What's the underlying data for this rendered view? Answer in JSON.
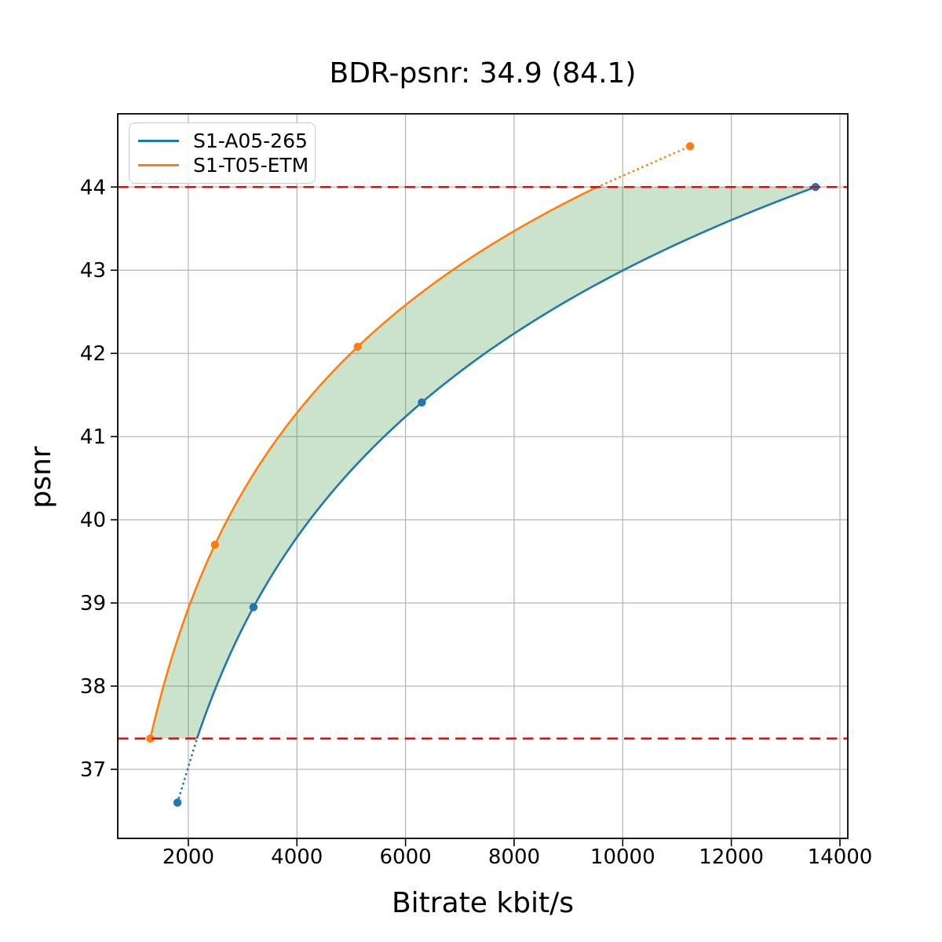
{
  "chart_data": {
    "type": "line",
    "title": "BDR-psnr: 34.9 (84.1)",
    "xlabel": "Bitrate kbit/s",
    "ylabel": "psnr",
    "xlim": [
      700,
      14145
    ],
    "ylim": [
      36.17,
      44.88
    ],
    "x_ticks": [
      2000,
      4000,
      6000,
      8000,
      10000,
      12000,
      14000
    ],
    "y_ticks": [
      37,
      38,
      39,
      40,
      41,
      42,
      43,
      44
    ],
    "grid": true,
    "grid_color": "#b3b3b3",
    "legend_position": "upper left",
    "interpolation": "pchip-log-x",
    "series": [
      {
        "name": "S1-A05-265",
        "color": "#1f77b4",
        "points": [
          [
            1800,
            36.6
          ],
          [
            3200,
            38.95
          ],
          [
            6300,
            41.41
          ],
          [
            13550,
            44.0
          ]
        ]
      },
      {
        "name": "S1-T05-ETM",
        "color": "#ff7f0e",
        "points": [
          [
            1300,
            37.37
          ],
          [
            2490,
            39.7
          ],
          [
            5120,
            42.08
          ],
          [
            11240,
            44.49
          ]
        ]
      }
    ],
    "reference_lines": {
      "color": "#ff0000",
      "style": "dashed",
      "y_values": [
        37.37,
        44.0
      ]
    },
    "fill_between": {
      "color": "#2e8b2e",
      "opacity": 0.25,
      "between": [
        "S1-T05-ETM",
        "S1-A05-265"
      ],
      "psnr_range": [
        37.37,
        44.0
      ]
    }
  }
}
